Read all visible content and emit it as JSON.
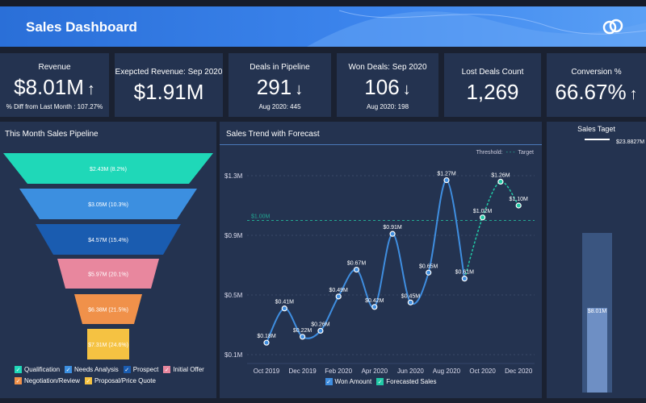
{
  "header": {
    "title": "Sales Dashboard",
    "logo_icon": "linked-rings-icon"
  },
  "kpis": [
    {
      "label": "Revenue",
      "value": "$8.01M",
      "arrow": "↑",
      "sub": "% Diff from Last Month : 107.27%"
    },
    {
      "label": "Exepcted Revenue: Sep 2020",
      "value": "$1.91M"
    },
    {
      "label": "Deals in Pipeline",
      "value": "291",
      "arrow": "↓",
      "sub": "Aug 2020: 445"
    },
    {
      "label": "Won Deals: Sep 2020",
      "value": "106",
      "arrow": "↓",
      "sub": "Aug 2020: 198"
    },
    {
      "label": "Lost Deals Count",
      "value": "1,269"
    },
    {
      "label": "Conversion %",
      "value": "66.67%",
      "arrow": "↑"
    }
  ],
  "funnel": {
    "title": "This Month Sales Pipeline",
    "stages": [
      {
        "name": "Qualification",
        "label": "$2.43M (8.2%)",
        "color": "#1fd8b8"
      },
      {
        "name": "Needs Analysis",
        "label": "$3.05M (10.3%)",
        "color": "#3c8fe0"
      },
      {
        "name": "Prospect",
        "label": "$4.57M (15.4%)",
        "color": "#1a5cb0"
      },
      {
        "name": "Initial Offer",
        "label": "$5.97M (20.1%)",
        "color": "#e8879e"
      },
      {
        "name": "Negotiation/Review",
        "label": "$6.38M (21.5%)",
        "color": "#f0914a"
      },
      {
        "name": "Proposal/Price Quote",
        "label": "$7.31M (24.6%)",
        "color": "#f5c242"
      }
    ]
  },
  "chart_data": {
    "type": "line",
    "title": "Sales Trend with Forecast",
    "y_ticks": [
      "$1.3M",
      "$0.9M",
      "$0.5M",
      "$0.1M"
    ],
    "y_tick_values": [
      1.3,
      0.9,
      0.5,
      0.1
    ],
    "x_ticks": [
      "Oct 2019",
      "Dec 2019",
      "Feb 2020",
      "Apr 2020",
      "Jun 2020",
      "Aug 2020",
      "Oct 2020",
      "Dec 2020"
    ],
    "threshold": {
      "legend_title": "Threshold:",
      "name": "Target",
      "value": 1.0,
      "label": "$1.00M"
    },
    "series": [
      {
        "name": "Won Amount",
        "color": "#3f8ee0",
        "x": [
          "Oct 2019",
          "Nov 2019",
          "Dec 2019",
          "Jan 2020",
          "Feb 2020",
          "Mar 2020",
          "Apr 2020",
          "May 2020",
          "Jun 2020",
          "Jul 2020",
          "Aug 2020",
          "Sep 2020"
        ],
        "values": [
          0.18,
          0.41,
          0.22,
          0.26,
          0.49,
          0.67,
          0.42,
          0.91,
          0.45,
          0.65,
          1.27,
          0.61
        ],
        "labels": [
          "$0.18M",
          "$0.41M",
          "$0.22M",
          "$0.26M",
          "$0.49M",
          "$0.67M",
          "$0.42M",
          "$0.91M",
          "$0.45M",
          "$0.65M",
          "$1.27M",
          "$0.61M"
        ]
      },
      {
        "name": "Forecasted Sales",
        "color": "#22c9a6",
        "x": [
          "Oct 2020",
          "Nov 2020",
          "Dec 2020"
        ],
        "values": [
          1.02,
          1.26,
          1.1
        ],
        "labels": [
          "$1.02M",
          "$1.26M",
          "$1.10M"
        ]
      }
    ]
  },
  "target": {
    "title": "Sales Taget",
    "target_label": "$23.8827M",
    "actual_label": "$8.01M",
    "target_value": 23.8827,
    "actual_value": 8.01
  }
}
